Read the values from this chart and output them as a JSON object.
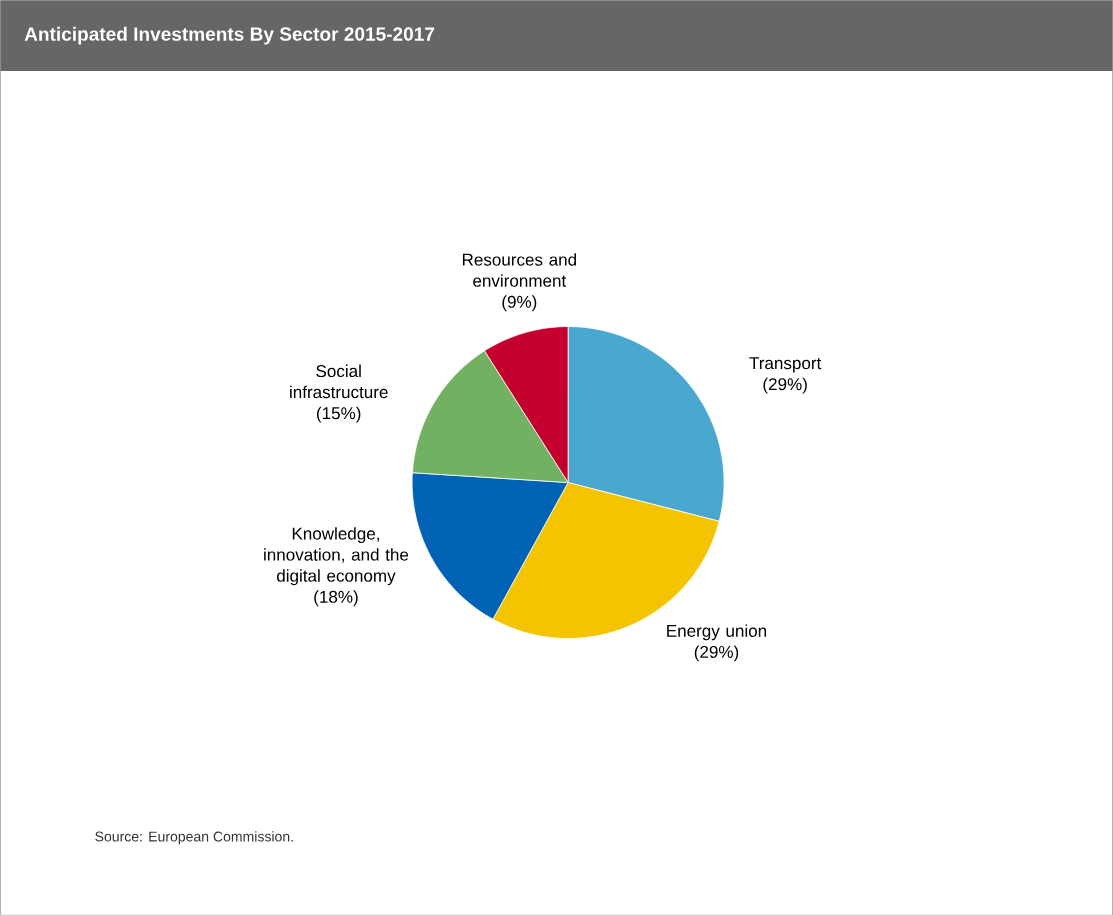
{
  "chart_data": {
    "type": "pie",
    "title": "Anticipated Investments  By  Sector 2015-2017",
    "categories": [
      "Transport",
      "Energy union",
      "Knowledge, innovation, and the digital economy",
      "Social infrastructure",
      "Resources and environment"
    ],
    "values": [
      29,
      29,
      18,
      15,
      9
    ],
    "value_labels": [
      "(29%)",
      "(29%)",
      "(18%)",
      "(15%)",
      "(9%)"
    ],
    "colors": [
      "#4aa8d0",
      "#f5c400",
      "#0062b4",
      "#72b162",
      "#c4002f"
    ],
    "annotations": [
      "Source: European Commission."
    ]
  }
}
